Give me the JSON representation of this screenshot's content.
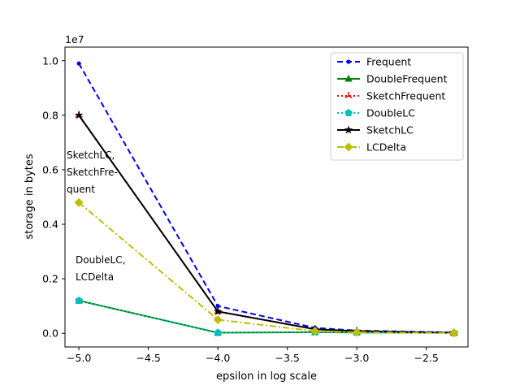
{
  "chart_data": {
    "type": "line",
    "xlabel": "epsilon in log scale",
    "ylabel": "storage in bytes",
    "y_offset_label": "1e7",
    "xlim": [
      -5.1,
      -2.2
    ],
    "ylim": [
      -0.05,
      1.05
    ],
    "x_ticks": [
      -5.0,
      -4.5,
      -4.0,
      -3.5,
      -3.0,
      -2.5
    ],
    "x_tick_labels": [
      "−5.0",
      "−4.5",
      "−4.0",
      "−3.5",
      "−3.0",
      "−2.5"
    ],
    "y_ticks": [
      0.0,
      0.2,
      0.4,
      0.6,
      0.8,
      1.0
    ],
    "y_tick_labels": [
      "0.0",
      "0.2",
      "0.4",
      "0.6",
      "0.8",
      "1.0"
    ],
    "legend_position": "top-right",
    "x": [
      -5.0,
      -4.0,
      -3.301,
      -3.0,
      -2.301
    ],
    "series": [
      {
        "name": "Frequent",
        "color": "#0000ff",
        "dash": "dashed",
        "marker": "point",
        "values": [
          0.99,
          0.1,
          0.02,
          0.01,
          0.003
        ]
      },
      {
        "name": "DoubleFrequent",
        "color": "#008000",
        "dash": "solid",
        "marker": "triangle",
        "values": [
          0.12,
          0.002,
          0.004,
          0.003,
          0.002
        ]
      },
      {
        "name": "SketchFrequent",
        "color": "#ff0000",
        "dash": "dotted",
        "marker": "tri",
        "values": [
          0.8,
          0.08,
          0.015,
          0.008,
          0.002
        ]
      },
      {
        "name": "DoubleLC",
        "color": "#00bfbf",
        "dash": "dotted",
        "marker": "pentagon",
        "values": [
          0.12,
          0.002,
          0.004,
          0.003,
          0.002
        ]
      },
      {
        "name": "SketchLC",
        "color": "#000000",
        "dash": "solid",
        "marker": "star",
        "values": [
          0.8,
          0.08,
          0.015,
          0.008,
          0.002
        ]
      },
      {
        "name": "LCDelta",
        "color": "#bfbf00",
        "dash": "dashdot",
        "marker": "diamond",
        "values": [
          0.48,
          0.05,
          0.008,
          0.004,
          0.001
        ]
      }
    ],
    "annotations": [
      {
        "lines": [
          "SketchLC,",
          "SketchFre-",
          "quent"
        ]
      },
      {
        "lines": [
          "DoubleLC,",
          "LCDelta"
        ]
      }
    ]
  }
}
